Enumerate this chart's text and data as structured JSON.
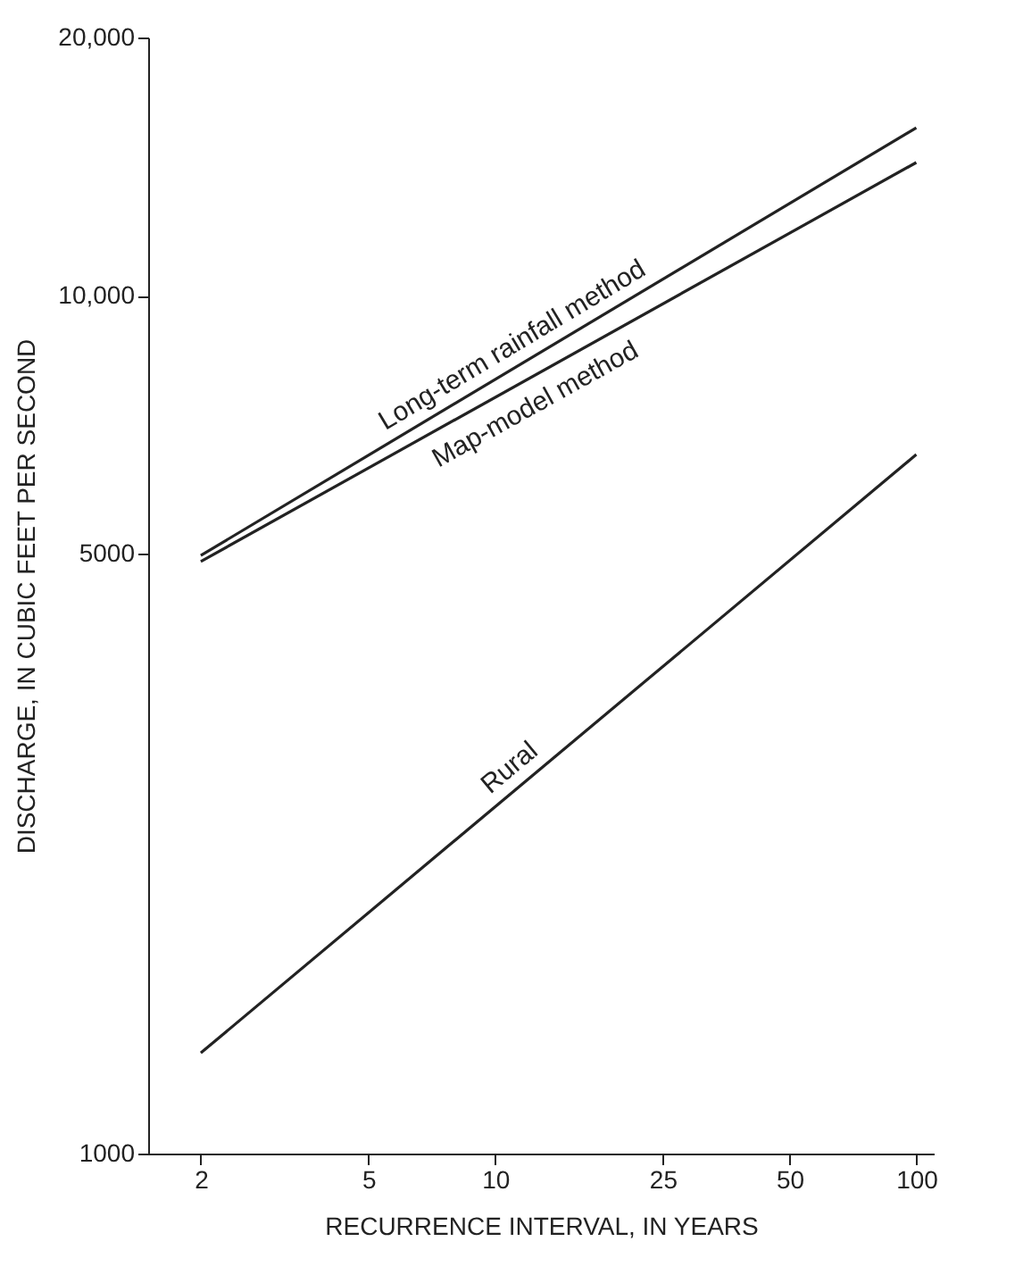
{
  "chart_data": {
    "type": "line",
    "xlabel": "RECURRENCE INTERVAL, IN YEARS",
    "ylabel": "DISCHARGE, IN CUBIC FEET PER SECOND",
    "log": "xy",
    "x": [
      2,
      100
    ],
    "xlim": [
      1.5,
      110
    ],
    "xticks": [
      2,
      5,
      10,
      25,
      50,
      100
    ],
    "ylim": [
      1000,
      20000
    ],
    "yticks": [
      1000,
      5000,
      {
        "value": 10000,
        "label": "10,000"
      },
      {
        "value": 20000,
        "label": "20,000"
      }
    ],
    "series": [
      {
        "name": "Long-term rainfall method",
        "color": "#222222",
        "values": [
          4980,
          15700
        ]
      },
      {
        "name": "Map-model method",
        "color": "#222222",
        "values": [
          4900,
          14300
        ]
      },
      {
        "name": "Rural",
        "color": "#222222",
        "values": [
          1310,
          6530
        ]
      }
    ],
    "grid": false,
    "legend": false,
    "marker": "none",
    "line_style": "solid"
  }
}
